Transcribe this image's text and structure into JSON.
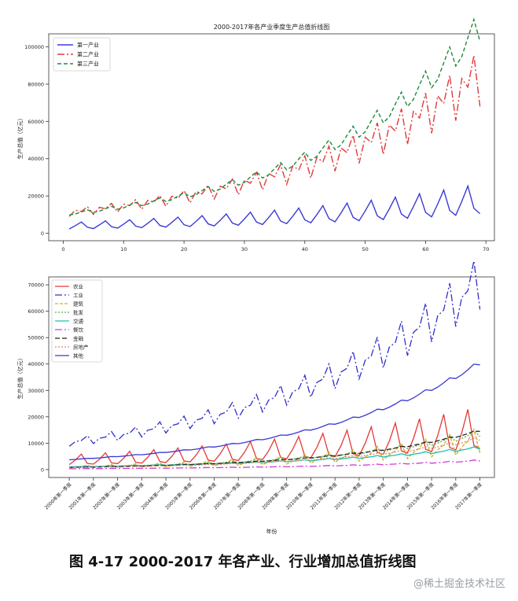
{
  "chart_data": [
    {
      "type": "line",
      "title": "2000-2017年各产业季度生产总值折线图",
      "xlabel": "",
      "ylabel": "生产总值（亿元）",
      "xlim": [
        -2.4,
        71.4
      ],
      "ylim": [
        -4000,
        107000
      ],
      "x_ticks": [
        0,
        10,
        20,
        30,
        40,
        50,
        60,
        70
      ],
      "y_ticks": [
        0,
        20000,
        40000,
        60000,
        80000,
        100000
      ],
      "legend": "top-left",
      "grid": false,
      "series": [
        {
          "name": "第一产业",
          "color": "#3b3bd6",
          "dash": "",
          "q": [
            2300,
            4000,
            5800,
            3000
          ],
          "growth": 0.0226
        },
        {
          "name": "第二产业",
          "color": "#e03a3a",
          "dash": "9,3,2,3",
          "q": [
            9000,
            12000,
            11000,
            13000
          ],
          "growth": 0.0302
        },
        {
          "name": "第三产业",
          "color": "#1f8a3a",
          "dash": "5,3",
          "q": [
            9800,
            10000,
            10700,
            11300
          ],
          "growth": 0.0352
        }
      ]
    },
    {
      "type": "line",
      "title": "",
      "xlabel": "年份",
      "ylabel": "生产总值（亿元）",
      "ylim": [
        -3000,
        73000
      ],
      "y_ticks": [
        0,
        10000,
        20000,
        30000,
        40000,
        50000,
        60000,
        70000
      ],
      "categories": [
        "2000年第一季度",
        "2001年第一季度",
        "2002年第一季度",
        "2003年第一季度",
        "2004年第一季度",
        "2005年第一季度",
        "2006年第一季度",
        "2007年第一季度",
        "2008年第一季度",
        "2009年第一季度",
        "2010年第一季度",
        "2011年第一季度",
        "2012年第一季度",
        "2013年第一季度",
        "2014年第一季度",
        "2015年第一季度",
        "2016年第一季度",
        "2017年第一季度"
      ],
      "legend": "top-left",
      "grid": false,
      "series": [
        {
          "name": "农业",
          "color": "#e53935",
          "dash": "",
          "q": [
            1900,
            3500,
            5600,
            2200
          ],
          "growth": 0.0215
        },
        {
          "name": "工业",
          "color": "#3030c8",
          "dash": "9,3,2,3",
          "q": [
            8800,
            10300,
            10400,
            11800
          ],
          "growth": 0.0288
        },
        {
          "name": "建筑",
          "color": "#d4b01c",
          "dash": "4,2",
          "q": [
            600,
            900,
            1100,
            1500
          ],
          "growth": 0.0352
        },
        {
          "name": "批发",
          "color": "#56b04a",
          "dash": "2,2",
          "q": [
            900,
            950,
            1000,
            1100
          ],
          "growth": 0.0395
        },
        {
          "name": "交通",
          "color": "#1fbfb0",
          "dash": "",
          "q": [
            1000,
            1050,
            1080,
            1150
          ],
          "growth": 0.0305
        },
        {
          "name": "餐饮",
          "color": "#d23ad2",
          "dash": "9,3,2,3",
          "q": [
            300,
            310,
            320,
            350
          ],
          "growth": 0.0355
        },
        {
          "name": "金融",
          "color": "#222222",
          "dash": "6,3",
          "q": [
            800,
            810,
            820,
            840
          ],
          "growth": 0.0435
        },
        {
          "name": "房地产",
          "color": "#e08a6a",
          "dash": "2,2",
          "q": [
            700,
            720,
            740,
            780
          ],
          "growth": 0.0415
        },
        {
          "name": "其他",
          "color": "#3838d8",
          "dash": "",
          "q": [
            3700,
            3720,
            3780,
            3860
          ],
          "growth": 0.0355
        }
      ]
    }
  ],
  "caption": "图 4-17 2000-2017 年各产业、行业增加总值折线图",
  "watermark": "@稀土掘金技术社区"
}
